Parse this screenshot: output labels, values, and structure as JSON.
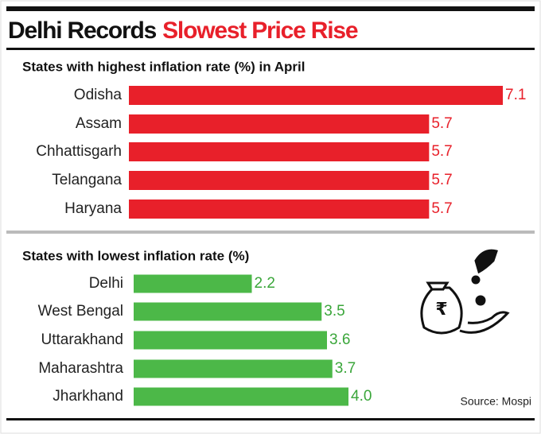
{
  "header": {
    "title_black": "Delhi Records",
    "title_red": "Slowest Price Rise"
  },
  "chart_data": [
    {
      "type": "bar",
      "orientation": "horizontal",
      "title": "States with highest inflation rate (%) in April",
      "categories": [
        "Odisha",
        "Assam",
        "Chhattisgarh",
        "Telangana",
        "Haryana"
      ],
      "values": [
        7.1,
        5.7,
        5.7,
        5.7,
        5.7
      ],
      "color": "#e8202a",
      "label_color": "#e8202a"
    },
    {
      "type": "bar",
      "orientation": "horizontal",
      "title": "States with lowest inflation rate (%)",
      "categories": [
        "Delhi",
        "West Bengal",
        "Uttarakhand",
        "Maharashtra",
        "Jharkhand"
      ],
      "values": [
        2.2,
        3.5,
        3.6,
        3.7,
        4.0
      ],
      "value_labels": [
        "2.2",
        "3.5",
        "3.6",
        "3.7",
        "4.0"
      ],
      "color": "#4cb848",
      "label_color": "#3aa63a"
    }
  ],
  "source": "Source: Mospi"
}
